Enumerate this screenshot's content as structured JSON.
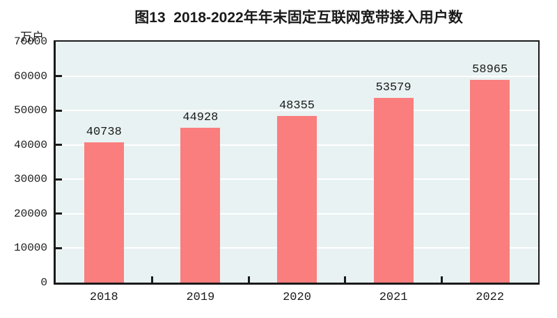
{
  "figure": {
    "title": "图13  2018-2022年年末固定互联网宽带接入用户数",
    "unit_label": "万户"
  },
  "chart_data": {
    "type": "bar",
    "title": "图13 2018-2022年年末固定互联网宽带接入用户数",
    "categories": [
      "2018",
      "2019",
      "2020",
      "2021",
      "2022"
    ],
    "values": [
      40738,
      44928,
      48355,
      53579,
      58965
    ],
    "xlabel": "",
    "ylabel": "万户",
    "ylim": [
      0,
      70000
    ],
    "yticks": [
      0,
      10000,
      20000,
      30000,
      40000,
      50000,
      60000,
      70000
    ],
    "grid": true,
    "legend_position": "none",
    "data_labels": true,
    "colors": {
      "bar": "#FA7E7E",
      "plot_background": "#E9F2F2",
      "grid_line": "#FFFFFF",
      "axis": "#1A1A1A",
      "text": "#1A1A1A"
    }
  }
}
